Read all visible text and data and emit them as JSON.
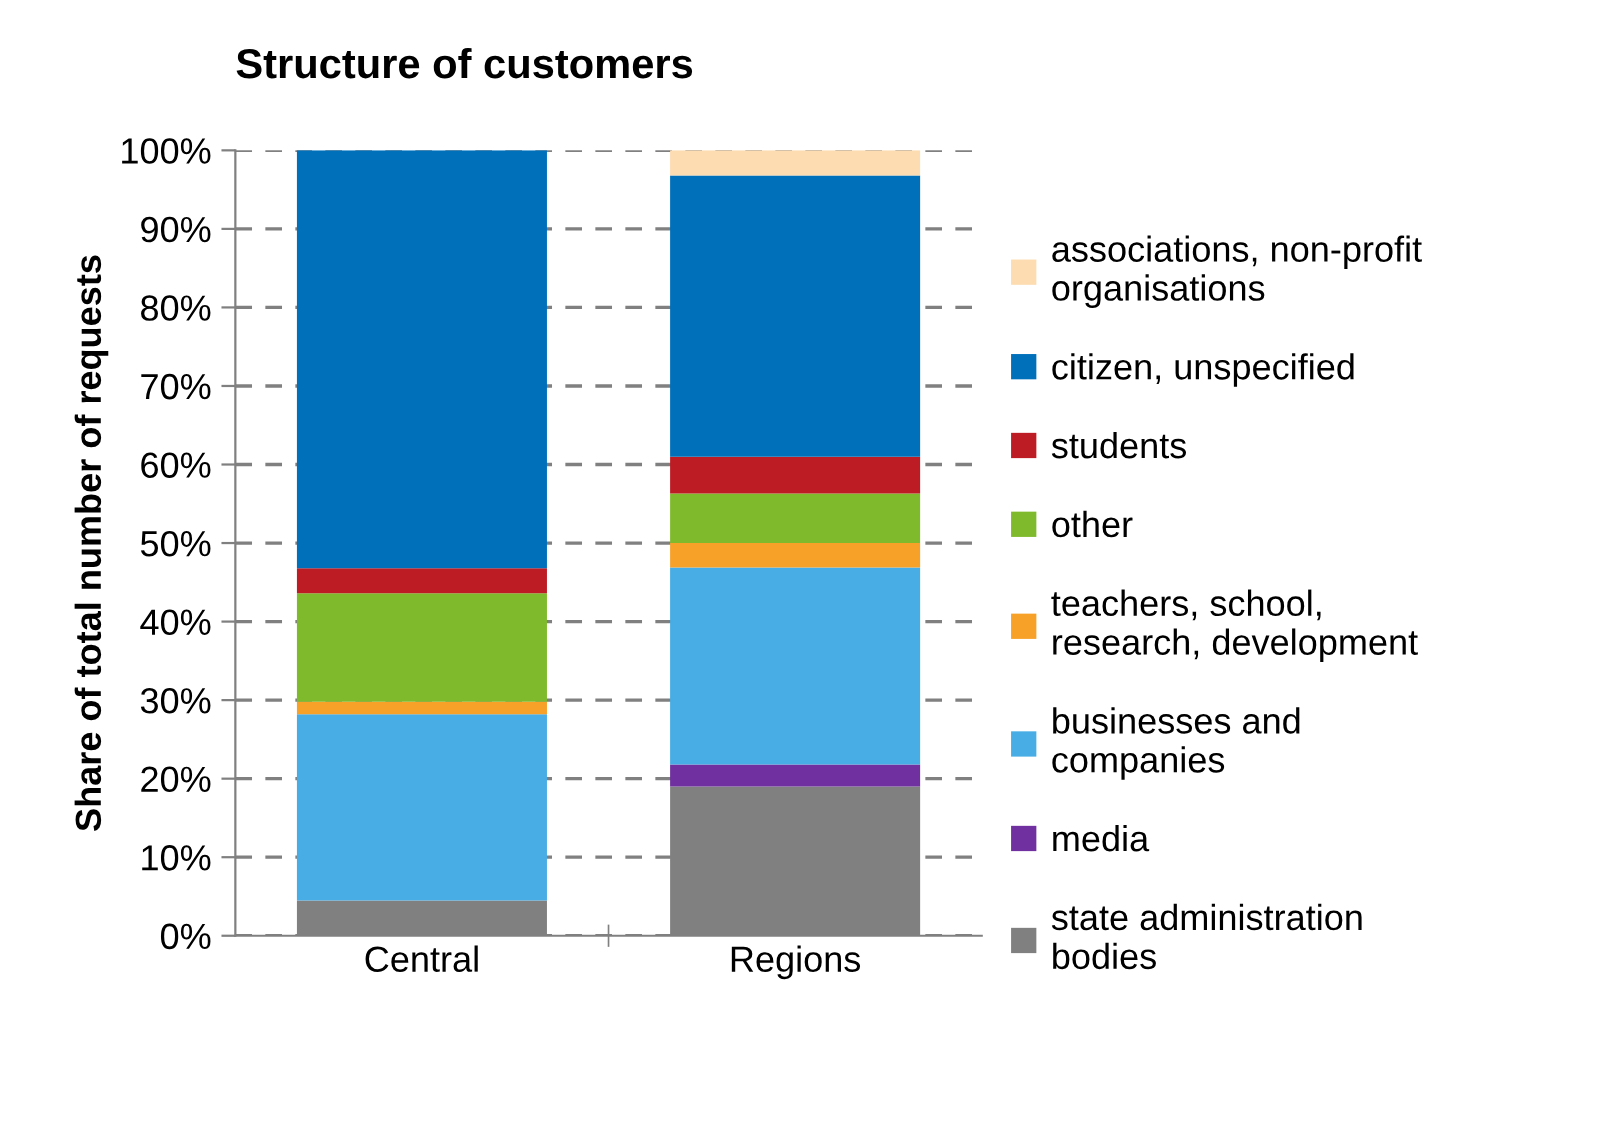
{
  "chart_data": {
    "type": "bar",
    "title": "Structure of customers",
    "ylabel": "Share of total number of requests",
    "categories": [
      "Central",
      "Regions"
    ],
    "stacked": true,
    "series": [
      {
        "name": "state administration\nbodies",
        "color": "#808080",
        "values": [
          4.5,
          19.0
        ]
      },
      {
        "name": "media",
        "color": "#7030a0",
        "values": [
          0,
          2.8
        ]
      },
      {
        "name": "businesses and\ncompanies",
        "color": "#48ade5",
        "values": [
          23.7,
          25.1
        ]
      },
      {
        "name": "teachers, school,\nresearch, development",
        "color": "#f7a128",
        "values": [
          1.6,
          3.1
        ]
      },
      {
        "name": "other",
        "color": "#7fba2c",
        "values": [
          13.8,
          6.3
        ]
      },
      {
        "name": "students",
        "color": "#be1c24",
        "values": [
          3.2,
          4.7
        ]
      },
      {
        "name": "citizen, unspecified",
        "color": "#0070bb",
        "values": [
          53.2,
          35.8
        ]
      },
      {
        "name": "associations, non-profit\norganisations",
        "color": "#fcdcb0",
        "values": [
          0,
          3.2
        ]
      }
    ],
    "ylim": [
      0,
      100
    ],
    "yticks": [
      {
        "value": 0,
        "label": "0%"
      },
      {
        "value": 10,
        "label": "10%"
      },
      {
        "value": 20,
        "label": "20%"
      },
      {
        "value": 30,
        "label": "30%"
      },
      {
        "value": 40,
        "label": "40%"
      },
      {
        "value": 50,
        "label": "50%"
      },
      {
        "value": 60,
        "label": "60%"
      },
      {
        "value": 70,
        "label": "70%"
      },
      {
        "value": 80,
        "label": "80%"
      },
      {
        "value": 90,
        "label": "90%"
      },
      {
        "value": 100,
        "label": "100%"
      }
    ],
    "grid": "y",
    "legend": "right"
  }
}
